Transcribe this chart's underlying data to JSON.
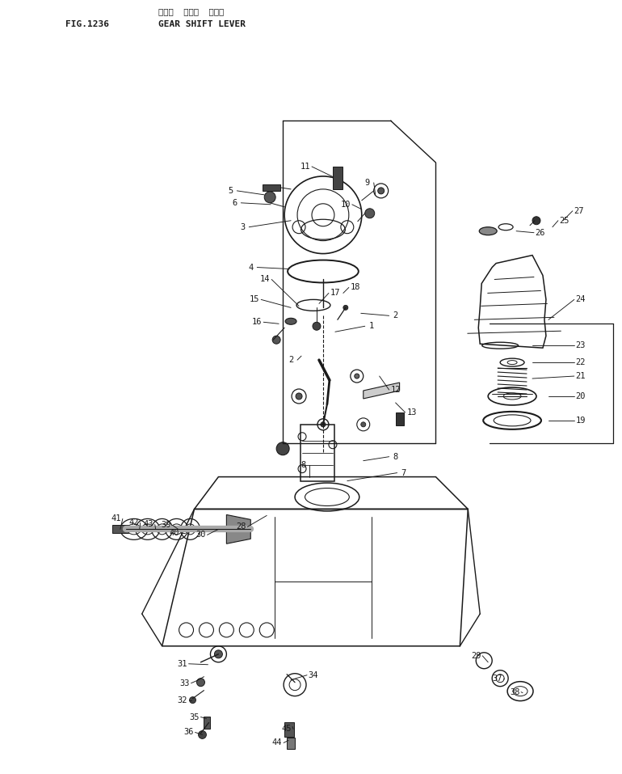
{
  "title_jp": "ギヤー  シフト  レバー",
  "title_en": "GEAR SHIFT LEVER",
  "fig_num": "FIG.1236",
  "bg_color": "#ffffff",
  "line_color": "#1a1a1a",
  "fig_size": [
    7.7,
    9.57
  ],
  "dpi": 100
}
